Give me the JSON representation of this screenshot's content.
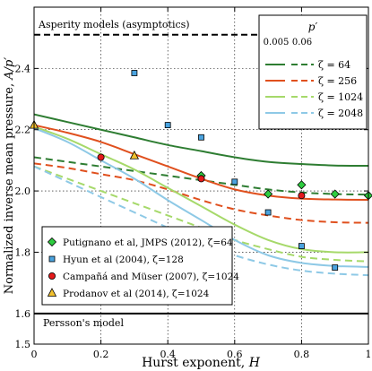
{
  "chart_data": {
    "type": "line",
    "xlabel": "Hurst exponent, ",
    "xlabel_var": "H",
    "ylabel": "Normalized inverse mean pressure, ",
    "ylabel_var": "A/p′",
    "xlim": [
      0,
      1
    ],
    "ylim": [
      1.5,
      2.6
    ],
    "xticks": [
      0,
      0.2,
      0.4,
      0.6,
      0.8,
      1
    ],
    "xtick_labels": [
      "0",
      "0.2",
      "0.4",
      "0.6",
      "0.8",
      "1"
    ],
    "yticks": [
      1.5,
      1.6,
      1.8,
      2.0,
      2.2,
      2.4
    ],
    "ytick_labels": [
      "1.5",
      "1.6",
      "1.8",
      "2.0",
      "2.2",
      "2.4"
    ],
    "grid": true,
    "reference_lines": [
      {
        "label": "Asperity models (asymptotics)",
        "y": 2.51,
        "style": "dashed"
      },
      {
        "label": "Persson's model",
        "y": 1.6,
        "style": "solid"
      }
    ],
    "line_legend": {
      "title": "p′",
      "col_headers": [
        "0.005",
        "0.06"
      ],
      "entries": [
        {
          "label": "ζ = 64",
          "color": "#2e7d32"
        },
        {
          "label": "ζ = 256",
          "color": "#e0501e"
        },
        {
          "label": "ζ = 1024",
          "color": "#a6d96a"
        },
        {
          "label": "ζ = 2048",
          "color": "#8ec9e6"
        }
      ]
    },
    "x": [
      0,
      0.1,
      0.2,
      0.3,
      0.4,
      0.5,
      0.6,
      0.7,
      0.8,
      0.9,
      1.0
    ],
    "series": [
      {
        "zeta": "ζ = 64",
        "p": "0.005",
        "color": "#2e7d32",
        "dash": false,
        "values": [
          2.25,
          2.225,
          2.2,
          2.175,
          2.15,
          2.13,
          2.11,
          2.095,
          2.088,
          2.083,
          2.082
        ]
      },
      {
        "zeta": "ζ = 64",
        "p": "0.06",
        "color": "#2e7d32",
        "dash": true,
        "values": [
          2.11,
          2.095,
          2.08,
          2.065,
          2.05,
          2.035,
          2.02,
          2.005,
          1.995,
          1.99,
          1.988
        ]
      },
      {
        "zeta": "ζ = 256",
        "p": "0.005",
        "color": "#e0501e",
        "dash": false,
        "values": [
          2.215,
          2.19,
          2.16,
          2.12,
          2.08,
          2.04,
          2.005,
          1.985,
          1.975,
          1.972,
          1.971
        ]
      },
      {
        "zeta": "ζ = 256",
        "p": "0.06",
        "color": "#e0501e",
        "dash": true,
        "values": [
          2.09,
          2.075,
          2.055,
          2.035,
          2.005,
          1.97,
          1.94,
          1.92,
          1.905,
          1.898,
          1.896
        ]
      },
      {
        "zeta": "ζ = 1024",
        "p": "0.005",
        "color": "#a6d96a",
        "dash": false,
        "values": [
          2.21,
          2.17,
          2.12,
          2.07,
          2.01,
          1.95,
          1.89,
          1.84,
          1.81,
          1.8,
          1.8
        ]
      },
      {
        "zeta": "ζ = 1024",
        "p": "0.06",
        "color": "#a6d96a",
        "dash": true,
        "values": [
          2.08,
          2.04,
          2.0,
          1.96,
          1.92,
          1.88,
          1.84,
          1.81,
          1.785,
          1.775,
          1.77
        ]
      },
      {
        "zeta": "ζ = 2048",
        "p": "0.005",
        "color": "#8ec9e6",
        "dash": false,
        "values": [
          2.205,
          2.16,
          2.1,
          2.04,
          1.97,
          1.905,
          1.84,
          1.79,
          1.765,
          1.755,
          1.752
        ]
      },
      {
        "zeta": "ζ = 2048",
        "p": "0.06",
        "color": "#8ec9e6",
        "dash": true,
        "values": [
          2.08,
          2.03,
          1.98,
          1.93,
          1.88,
          1.83,
          1.79,
          1.76,
          1.74,
          1.73,
          1.725
        ]
      }
    ],
    "marker_series": [
      {
        "label": "Putignano et al, JMPS (2012), ζ=64",
        "marker": "diamond",
        "color": "#2ecc40",
        "points": [
          [
            0.5,
            2.05
          ],
          [
            0.7,
            1.99
          ],
          [
            0.8,
            2.02
          ],
          [
            0.9,
            1.99
          ],
          [
            1.0,
            1.985
          ]
        ]
      },
      {
        "label": "Hyun et al (2004), ζ=128",
        "marker": "square",
        "color": "#4aa3df",
        "points": [
          [
            0.3,
            2.385
          ],
          [
            0.4,
            2.215
          ],
          [
            0.5,
            2.175
          ],
          [
            0.6,
            2.03
          ],
          [
            0.7,
            1.93
          ],
          [
            0.8,
            1.82
          ],
          [
            0.9,
            1.75
          ]
        ]
      },
      {
        "label": "Campañá and Müser (2007), ζ=1024",
        "marker": "circle",
        "color": "#e41a1c",
        "points": [
          [
            0.2,
            2.11
          ],
          [
            0.5,
            2.04
          ],
          [
            0.8,
            1.985
          ]
        ]
      },
      {
        "label": "Prodanov et al (2014), ζ=1024",
        "marker": "triangle",
        "color": "#f2c12e",
        "points": [
          [
            0.0,
            2.215
          ],
          [
            0.3,
            2.115
          ]
        ]
      }
    ]
  }
}
